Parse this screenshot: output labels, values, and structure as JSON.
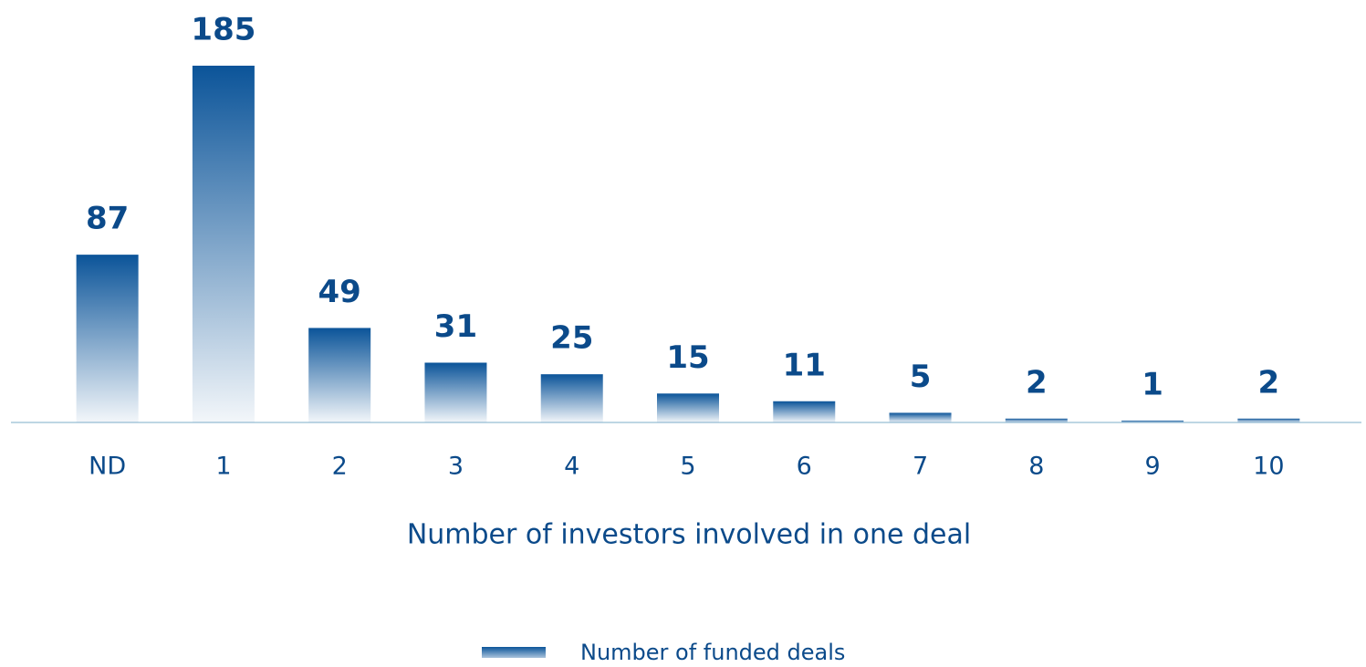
{
  "chart_data": {
    "type": "bar",
    "x_label": "Number of investors involved in one deal",
    "categories": [
      "ND",
      "1",
      "2",
      "3",
      "4",
      "5",
      "6",
      "7",
      "8",
      "9",
      "10"
    ],
    "series": [
      {
        "name": "Number of funded deals",
        "color": "#0b5499",
        "values": [
          87,
          185,
          49,
          31,
          25,
          15,
          11,
          5,
          2,
          1,
          2
        ]
      }
    ],
    "legend": "bottom"
  }
}
